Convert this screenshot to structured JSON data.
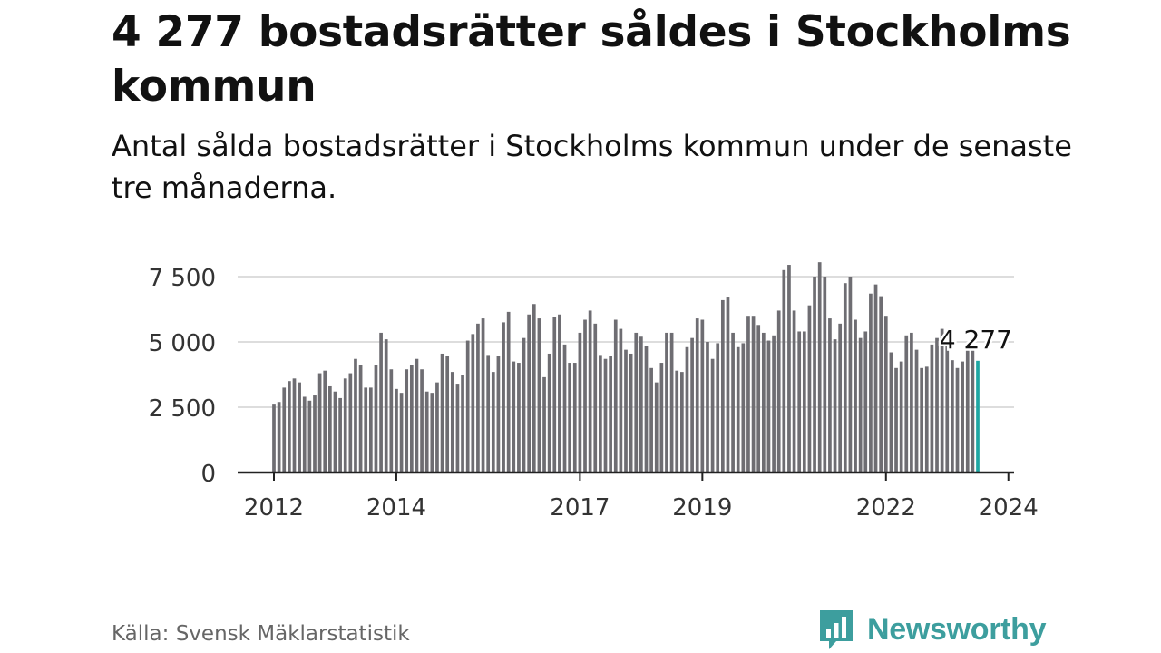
{
  "title": "4 277 bostadsrätter såldes i Stockholms kommun",
  "subtitle": "Antal sålda bostadsrätter i Stockholms kommun under de senaste tre månaderna.",
  "source": "Källa: Svensk Mäklarstatistik",
  "brand": {
    "name": "Newsworthy",
    "logo_icon": "bar-chart-speech-bubble-icon"
  },
  "colors": {
    "bar": "#6e6d72",
    "highlight": "#1fa7a3",
    "grid": "#dddddd",
    "axis": "#222222",
    "brand": "#3d9e9e"
  },
  "chart_data": {
    "type": "bar",
    "title": "4 277 bostadsrätter såldes i Stockholms kommun",
    "xlabel": "",
    "ylabel": "",
    "ylim": [
      0,
      8500
    ],
    "yticks": [
      0,
      2500,
      5000,
      7500
    ],
    "ytick_labels": [
      "0",
      "2 500",
      "5 000",
      "7 500"
    ],
    "grid": true,
    "x_start": "2012-01",
    "x_end": "2024-01",
    "xtick_labels": [
      "2012",
      "2014",
      "2017",
      "2019",
      "2022",
      "2024"
    ],
    "xtick_index": [
      0,
      24,
      60,
      84,
      120,
      144
    ],
    "highlight_label": "4 277",
    "series": [
      {
        "name": "Antal sålda bostadsrätter",
        "values": [
          2600,
          2700,
          3250,
          3500,
          3600,
          3450,
          2900,
          2750,
          2950,
          3800,
          3900,
          3300,
          3100,
          2850,
          3600,
          3800,
          4350,
          4100,
          3250,
          3250,
          4100,
          5350,
          5100,
          3950,
          3200,
          3050,
          3950,
          4100,
          4350,
          3950,
          3100,
          3050,
          3450,
          4550,
          4450,
          3850,
          3400,
          3750,
          5050,
          5300,
          5700,
          5900,
          4500,
          3850,
          4450,
          5750,
          6150,
          4250,
          4200,
          5150,
          6050,
          6450,
          5900,
          3650,
          4550,
          5950,
          6050,
          4900,
          4200,
          4200,
          5350,
          5850,
          6200,
          5700,
          4500,
          4350,
          4450,
          5850,
          5500,
          4700,
          4550,
          5350,
          5200,
          4850,
          4000,
          3450,
          4200,
          5350,
          5350,
          3900,
          3850,
          4800,
          5150,
          5900,
          5850,
          5000,
          4350,
          4950,
          6600,
          6700,
          5350,
          4800,
          4950,
          6000,
          6000,
          5650,
          5350,
          5050,
          5250,
          6200,
          7750,
          7950,
          6200,
          5400,
          5400,
          6400,
          7500,
          8050,
          7500,
          5900,
          5100,
          5700,
          7250,
          7500,
          5850,
          5150,
          5400,
          6850,
          7200,
          6750,
          6000,
          4600,
          4000,
          4250,
          5250,
          5350,
          4700,
          4000,
          4050,
          4900,
          5150,
          5500,
          4950,
          4300,
          4000,
          4250,
          4800,
          4750,
          4277
        ]
      }
    ]
  }
}
